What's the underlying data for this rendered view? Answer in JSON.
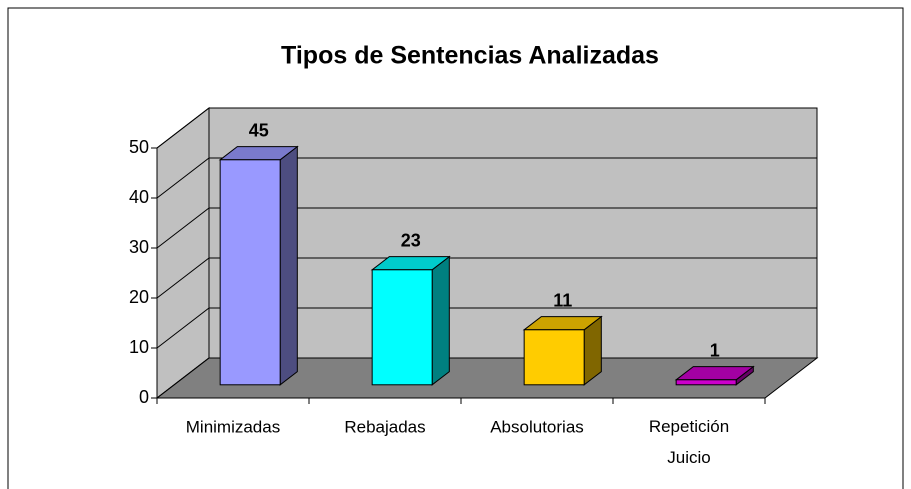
{
  "chart_data": {
    "type": "bar3d",
    "title": "Tipos de Sentencias Analizadas",
    "categories": [
      "Minimizadas",
      "Rebajadas",
      "Absolutorias",
      "Repetición Juicio"
    ],
    "values": [
      45,
      23,
      11,
      1
    ],
    "colors": [
      "#9999ff",
      "#00ffff",
      "#ffcc00",
      "#cc00cc"
    ],
    "ylim": [
      0,
      50
    ],
    "yticks": [
      0,
      10,
      20,
      30,
      40,
      50
    ],
    "grid": true
  }
}
